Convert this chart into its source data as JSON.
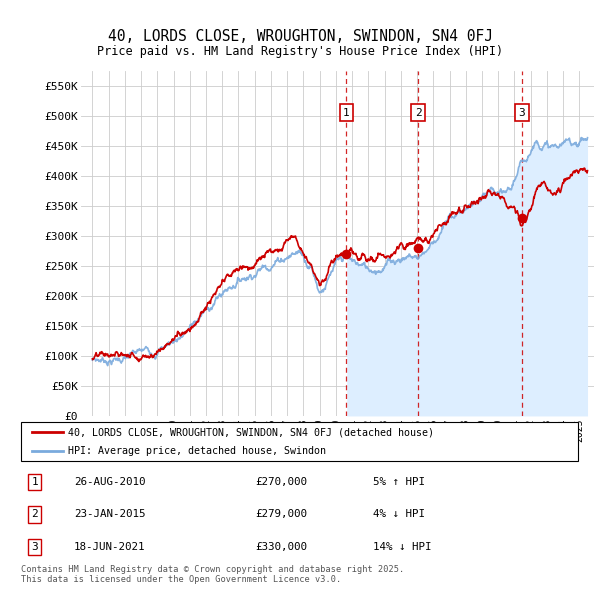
{
  "title": "40, LORDS CLOSE, WROUGHTON, SWINDON, SN4 0FJ",
  "subtitle": "Price paid vs. HM Land Registry's House Price Index (HPI)",
  "ylabel_ticks": [
    "£0",
    "£50K",
    "£100K",
    "£150K",
    "£200K",
    "£250K",
    "£300K",
    "£350K",
    "£400K",
    "£450K",
    "£500K",
    "£550K"
  ],
  "ytick_values": [
    0,
    50000,
    100000,
    150000,
    200000,
    250000,
    300000,
    350000,
    400000,
    450000,
    500000,
    550000
  ],
  "ylim": [
    0,
    575000
  ],
  "legend_line1": "40, LORDS CLOSE, WROUGHTON, SWINDON, SN4 0FJ (detached house)",
  "legend_line2": "HPI: Average price, detached house, Swindon",
  "sale_labels": [
    {
      "num": 1,
      "date": "26-AUG-2010",
      "price": "£270,000",
      "pct": "5% ↑ HPI"
    },
    {
      "num": 2,
      "date": "23-JAN-2015",
      "price": "£279,000",
      "pct": "4% ↓ HPI"
    },
    {
      "num": 3,
      "date": "18-JUN-2021",
      "price": "£330,000",
      "pct": "14% ↓ HPI"
    }
  ],
  "footnote": "Contains HM Land Registry data © Crown copyright and database right 2025.\nThis data is licensed under the Open Government Licence v3.0.",
  "sale_marker_dates": [
    2010.65,
    2015.06,
    2021.46
  ],
  "sale_marker_values": [
    270000,
    279000,
    330000
  ],
  "red_color": "#cc0000",
  "blue_color": "#7aaadd",
  "blue_fill": "#ddeeff",
  "bg_color": "#ffffff",
  "grid_color": "#cccccc",
  "dashed_color": "#cc0000"
}
